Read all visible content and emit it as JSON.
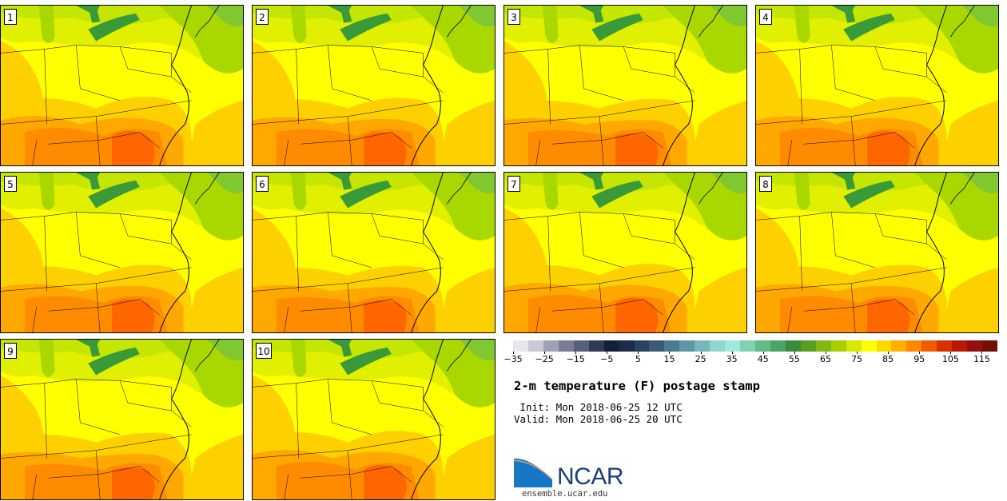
{
  "figure": {
    "title": "2-m temperature (F) postage stamp",
    "init": " Init: Mon 2018-06-25 12 UTC",
    "valid": "Valid: Mon 2018-06-25 20 UTC",
    "source_url": "ensemble.ucar.edu",
    "logo_text": "NCAR"
  },
  "members": [
    {
      "label": "1"
    },
    {
      "label": "2"
    },
    {
      "label": "3"
    },
    {
      "label": "4"
    },
    {
      "label": "5"
    },
    {
      "label": "6"
    },
    {
      "label": "7"
    },
    {
      "label": "8"
    },
    {
      "label": "9"
    },
    {
      "label": "10"
    }
  ],
  "colorbar": {
    "variable": "2-m temperature",
    "units": "F",
    "min": -35,
    "max": 120,
    "step": 5,
    "tick_labels": [
      "-35",
      "-25",
      "-15",
      "-5",
      "5",
      "15",
      "25",
      "35",
      "45",
      "55",
      "65",
      "75",
      "85",
      "95",
      "105",
      "115"
    ],
    "tick_values": [
      -35,
      -25,
      -15,
      -5,
      5,
      15,
      25,
      35,
      45,
      55,
      65,
      75,
      85,
      95,
      105,
      115
    ],
    "colors": [
      "#e6e6ee",
      "#c8c8d6",
      "#a0a0b6",
      "#7a7c94",
      "#55607a",
      "#2f3a55",
      "#14203a",
      "#1c2c48",
      "#2a4460",
      "#3a5a78",
      "#4a7a90",
      "#5e98a6",
      "#76b8bc",
      "#8ed6d0",
      "#9ee8dc",
      "#7ed2b0",
      "#62bc88",
      "#4aa466",
      "#3a8c3a",
      "#5a9e20",
      "#80b814",
      "#a8d000",
      "#d8e800",
      "#ffff00",
      "#ffd800",
      "#ffb000",
      "#ff8800",
      "#f05a00",
      "#d83000",
      "#b81800",
      "#941010",
      "#701008"
    ]
  },
  "map_colors": {
    "hot_95": "#ff6600",
    "hot_90": "#ff8c00",
    "warm_85": "#ffa800",
    "warm_80": "#ffd000",
    "mild_75": "#ffff00",
    "mild_70": "#e0f000",
    "cool_65": "#c4e600",
    "cool_60": "#a8d800",
    "cooler_55": "#80c830",
    "lake": "#3a9a3a",
    "outline": "#000000"
  }
}
